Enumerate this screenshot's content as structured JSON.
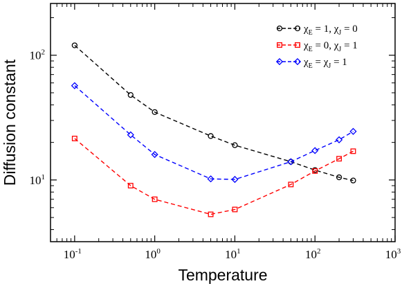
{
  "chart_data": {
    "type": "line",
    "xscale": "log",
    "yscale": "log",
    "xlabel": "Temperature",
    "ylabel": "Diffusion constant",
    "xlim": [
      0.05,
      1000
    ],
    "ylim": [
      3.2,
      260
    ],
    "x_ticks": [
      {
        "base": "10",
        "exp": "-1",
        "value": 0.1
      },
      {
        "base": "10",
        "exp": "0",
        "value": 1
      },
      {
        "base": "10",
        "exp": "1",
        "value": 10
      },
      {
        "base": "10",
        "exp": "2",
        "value": 100
      },
      {
        "base": "10",
        "exp": "3",
        "value": 1000
      }
    ],
    "y_ticks": [
      {
        "base": "10",
        "exp": "1",
        "value": 10
      },
      {
        "base": "10",
        "exp": "2",
        "value": 100
      }
    ],
    "legend_position": "top-right",
    "series": [
      {
        "legend": {
          "chi": "χ",
          "e1": "E",
          "eq1": " = 1, ",
          "e2": "J",
          "eq2": " = 0"
        },
        "color": "#000000",
        "marker": "circle",
        "x": [
          0.1,
          0.5,
          1,
          5,
          10,
          50,
          100,
          200,
          300
        ],
        "y": [
          120,
          48,
          35,
          22.5,
          19,
          14,
          12,
          10.5,
          9.9
        ]
      },
      {
        "legend": {
          "chi": "χ",
          "e1": "E",
          "eq1": " = 0, ",
          "e2": "J",
          "eq2": " = 1"
        },
        "color": "#ff0000",
        "marker": "square",
        "x": [
          0.1,
          0.5,
          1,
          5,
          10,
          50,
          100,
          200,
          300
        ],
        "y": [
          21.5,
          9,
          7,
          5.3,
          5.8,
          9.2,
          11.8,
          14.8,
          17
        ]
      },
      {
        "legend": {
          "chi": "χ",
          "e1": "E",
          "eq1": " = ",
          "e2": "J",
          "eq2": " = 1"
        },
        "color": "#0000ff",
        "marker": "diamond",
        "x": [
          0.1,
          0.5,
          1,
          5,
          10,
          50,
          100,
          200,
          300
        ],
        "y": [
          57,
          23,
          16,
          10.2,
          10.1,
          14,
          17.2,
          21,
          24.5
        ]
      }
    ]
  }
}
